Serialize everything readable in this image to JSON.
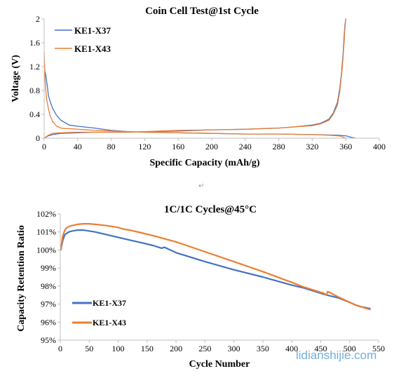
{
  "colors": {
    "ke1_x37": "#4472c4",
    "ke1_x43": "#ed7d31",
    "axis": "#bfbfbf"
  },
  "separator_mark": "↵",
  "watermark": "lidianshijie.com",
  "chart_data": [
    {
      "type": "line",
      "title": "Coin Cell Test@1st Cycle",
      "xlabel": "Specific Capacity (mAh/g)",
      "ylabel": "Voltage (V)",
      "xlim": [
        0,
        400
      ],
      "ylim": [
        0,
        2
      ],
      "xticks": [
        0,
        40,
        80,
        120,
        160,
        200,
        240,
        280,
        320,
        360,
        400
      ],
      "yticks": [
        0,
        0.4,
        0.8,
        1.2,
        1.6,
        2
      ],
      "ytick_labels": [
        "0",
        "0.4",
        "0.8",
        "1.2",
        "1.6",
        "2"
      ],
      "grid": false,
      "legend": "top-left",
      "series": [
        {
          "name": "KE1-X37",
          "color": "#4472c4",
          "discharge": {
            "x": [
              0,
              1,
              2,
              3,
              4,
              5,
              7,
              10,
              15,
              20,
              30,
              40,
              60,
              80,
              100,
              120,
              160,
              200,
              240,
              280,
              320,
              350,
              360,
              365,
              368,
              370,
              372
            ],
            "y": [
              1.2,
              1.12,
              1.05,
              0.95,
              0.85,
              0.72,
              0.62,
              0.5,
              0.38,
              0.3,
              0.22,
              0.2,
              0.17,
              0.13,
              0.11,
              0.1,
              0.09,
              0.08,
              0.07,
              0.07,
              0.06,
              0.05,
              0.04,
              0.02,
              0.01,
              0.005,
              0.0
            ]
          },
          "charge": {
            "x": [
              0,
              5,
              10,
              20,
              40,
              60,
              80,
              100,
              120,
              160,
              200,
              240,
              280,
              300,
              320,
              330,
              340,
              345,
              350,
              353,
              355,
              357,
              358,
              359,
              360
            ],
            "y": [
              0.0,
              0.04,
              0.06,
              0.08,
              0.09,
              0.1,
              0.1,
              0.1,
              0.11,
              0.12,
              0.14,
              0.15,
              0.17,
              0.19,
              0.22,
              0.25,
              0.32,
              0.42,
              0.6,
              0.85,
              1.1,
              1.45,
              1.7,
              1.9,
              2.0
            ]
          }
        },
        {
          "name": "KE1-X43",
          "color": "#ed7d31",
          "discharge": {
            "x": [
              0,
              1,
              2,
              3,
              5,
              7,
              10,
              15,
              20,
              25,
              30,
              40,
              60,
              80,
              100,
              120,
              160,
              200,
              240,
              280,
              320,
              340,
              350,
              355,
              358,
              360
            ],
            "y": [
              1.45,
              1.0,
              0.8,
              0.65,
              0.5,
              0.38,
              0.28,
              0.2,
              0.17,
              0.16,
              0.16,
              0.15,
              0.13,
              0.12,
              0.11,
              0.1,
              0.09,
              0.08,
              0.07,
              0.07,
              0.06,
              0.05,
              0.04,
              0.03,
              0.01,
              0.0
            ]
          },
          "charge": {
            "x": [
              0,
              5,
              10,
              20,
              40,
              60,
              80,
              100,
              120,
              160,
              200,
              240,
              280,
              300,
              320,
              330,
              340,
              345,
              350,
              353,
              356,
              358,
              359,
              360
            ],
            "y": [
              0.0,
              0.05,
              0.08,
              0.09,
              0.1,
              0.1,
              0.1,
              0.1,
              0.11,
              0.13,
              0.14,
              0.15,
              0.17,
              0.19,
              0.21,
              0.24,
              0.3,
              0.4,
              0.55,
              0.8,
              1.2,
              1.6,
              1.85,
              2.0
            ]
          }
        }
      ]
    },
    {
      "type": "line",
      "title": "1C/1C Cycles@45°C",
      "xlabel": "Cycle Number",
      "ylabel": "Capacity Retention Ratio",
      "xlim": [
        0,
        550
      ],
      "ylim": [
        95,
        102
      ],
      "xticks": [
        0,
        50,
        100,
        150,
        200,
        250,
        300,
        350,
        400,
        450,
        500,
        550
      ],
      "yticks": [
        95,
        96,
        97,
        98,
        99,
        100,
        101,
        102
      ],
      "ytick_labels": [
        "95%",
        "96%",
        "97%",
        "98%",
        "99%",
        "100%",
        "101%",
        "102%"
      ],
      "grid": false,
      "legend": "bottom-left",
      "series": [
        {
          "name": "KE1-X37",
          "color": "#4472c4",
          "x": [
            1,
            2,
            4,
            6,
            8,
            10,
            15,
            20,
            30,
            40,
            50,
            60,
            80,
            100,
            120,
            140,
            160,
            170,
            175,
            180,
            200,
            250,
            300,
            350,
            400,
            420,
            440,
            460,
            480,
            500,
            510,
            520,
            535
          ],
          "y": [
            100.0,
            100.2,
            100.5,
            100.7,
            100.85,
            100.9,
            101.0,
            101.05,
            101.1,
            101.1,
            101.05,
            101.0,
            100.85,
            100.7,
            100.55,
            100.4,
            100.25,
            100.15,
            100.1,
            100.15,
            99.85,
            99.35,
            98.9,
            98.5,
            98.05,
            97.9,
            97.7,
            97.5,
            97.35,
            97.1,
            96.95,
            96.85,
            96.75
          ]
        },
        {
          "name": "KE1-X43",
          "color": "#ed7d31",
          "x": [
            1,
            2,
            4,
            6,
            8,
            10,
            15,
            20,
            30,
            40,
            50,
            60,
            80,
            100,
            110,
            120,
            140,
            160,
            200,
            250,
            300,
            350,
            400,
            420,
            440,
            455,
            460,
            462,
            480,
            500,
            510,
            520,
            535
          ],
          "y": [
            100.0,
            100.3,
            100.75,
            100.95,
            101.1,
            101.2,
            101.3,
            101.35,
            101.42,
            101.45,
            101.45,
            101.42,
            101.35,
            101.25,
            101.15,
            101.1,
            100.95,
            100.8,
            100.45,
            99.9,
            99.35,
            98.8,
            98.2,
            97.95,
            97.75,
            97.6,
            97.5,
            97.7,
            97.4,
            97.1,
            96.95,
            96.85,
            96.7
          ]
        }
      ]
    }
  ]
}
